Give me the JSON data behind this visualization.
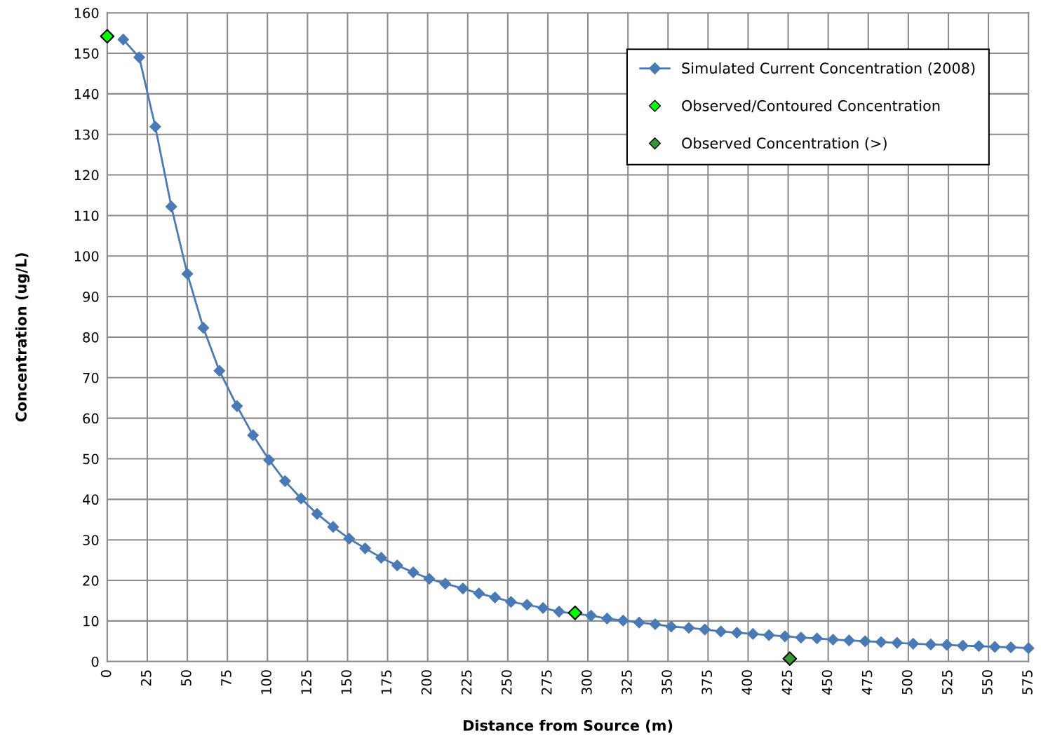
{
  "chart_data": {
    "type": "line",
    "xlabel": "Distance from Source (m)",
    "ylabel": "Concentration (ug/L)",
    "xlim": [
      0,
      575
    ],
    "xticks": [
      0,
      25,
      50,
      75,
      100,
      125,
      150,
      175,
      200,
      225,
      250,
      275,
      300,
      325,
      350,
      375,
      400,
      425,
      450,
      475,
      500,
      525,
      550,
      575
    ],
    "ylim": [
      0,
      160
    ],
    "yticks": [
      0,
      10,
      20,
      30,
      40,
      50,
      60,
      70,
      80,
      90,
      100,
      110,
      120,
      130,
      140,
      150,
      160
    ],
    "grid": true,
    "legend": "top right",
    "series": [
      {
        "name": "Simulated Current Concentration (2008)",
        "color": "#4a7ab5",
        "marker": "diamond",
        "line_style": "solid",
        "x": [
          10,
          20,
          30,
          40,
          50,
          60,
          70,
          81,
          91,
          101,
          111,
          121,
          131,
          141,
          151,
          161,
          171,
          181,
          191,
          201,
          211,
          222,
          232,
          242,
          252,
          262,
          272,
          282,
          292,
          302,
          312,
          322,
          332,
          342,
          352,
          363,
          373,
          383,
          393,
          403,
          413,
          423,
          433,
          443,
          453,
          463,
          473,
          483,
          493,
          503,
          514,
          524,
          534,
          544,
          554,
          564,
          575
        ],
        "values": [
          153.4,
          149,
          131.9,
          112.2,
          95.6,
          82.3,
          71.7,
          63.0,
          55.8,
          49.7,
          44.5,
          40.2,
          36.4,
          33.2,
          30.3,
          27.9,
          25.6,
          23.7,
          22.0,
          20.4,
          19.2,
          18.0,
          16.8,
          15.8,
          14.7,
          14.0,
          13.2,
          12.3,
          null,
          11.3,
          10.6,
          10.1,
          9.6,
          9.2,
          8.6,
          8.3,
          7.9,
          7.4,
          7.1,
          6.8,
          6.5,
          6.2,
          5.9,
          5.7,
          5.4,
          5.2,
          5.0,
          4.8,
          4.6,
          4.4,
          4.2,
          4.1,
          3.9,
          3.8,
          3.6,
          3.5,
          3.3
        ]
      },
      {
        "name": "Observed/Contoured Concentration",
        "type": "scatter",
        "color": "#00ff00",
        "marker": "diamond",
        "x": [
          0,
          292
        ],
        "values": [
          154.2,
          12.0
        ]
      },
      {
        "name": "Observed Concentration (>)",
        "type": "scatter",
        "color": "#339933",
        "marker": "diamond",
        "x": [
          426
        ],
        "values": [
          0.7
        ]
      }
    ]
  }
}
